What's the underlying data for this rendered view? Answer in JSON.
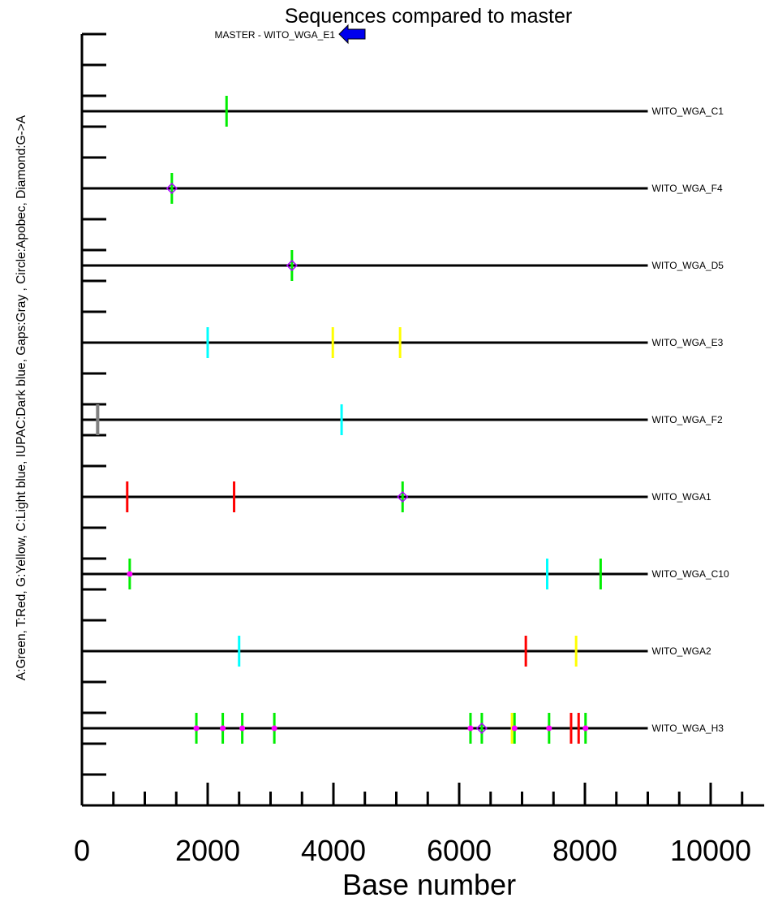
{
  "chart_data": {
    "type": "scatter",
    "title": "Sequences compared to master",
    "xlabel": "Base number",
    "ylabel": "A:Green, T:Red, G:Yellow, C:Light blue, IUPAC:Dark blue, Gaps:Gray , Circle:Apobec, Diamond:G->A",
    "xlim": [
      0,
      11000
    ],
    "x_ticks": [
      0,
      2000,
      4000,
      6000,
      8000,
      10000
    ],
    "x_tick_labels": [
      "0",
      "2000",
      "4000",
      "6000",
      "8000",
      "10000"
    ],
    "sequence_length": 9000,
    "master": {
      "label": "MASTER - WITO_WGA_E1"
    },
    "colors": {
      "A": "#00ee00",
      "T": "#ff0000",
      "G": "#ffff00",
      "C": "#00ffff",
      "IUPAC": "#0000ff",
      "gap": "#808080",
      "apobec": "#ff00ff",
      "g_to_a": "#aa00ff",
      "line": "#000000"
    },
    "sequences": [
      {
        "name": "WITO_WGA_C1",
        "mutations": [
          {
            "pos": 2300,
            "base": "A"
          }
        ]
      },
      {
        "name": "WITO_WGA_F4",
        "mutations": [
          {
            "pos": 1430,
            "base": "A",
            "mark": "diamond"
          }
        ]
      },
      {
        "name": "WITO_WGA_D5",
        "mutations": [
          {
            "pos": 3340,
            "base": "A",
            "mark": "diamond"
          }
        ]
      },
      {
        "name": "WITO_WGA_E3",
        "mutations": [
          {
            "pos": 2000,
            "base": "C"
          },
          {
            "pos": 3990,
            "base": "G"
          },
          {
            "pos": 5060,
            "base": "G"
          }
        ]
      },
      {
        "name": "WITO_WGA_F2",
        "mutations": [
          {
            "pos": 250,
            "base": "gap"
          },
          {
            "pos": 4130,
            "base": "C"
          }
        ]
      },
      {
        "name": "WITO_WGA1",
        "mutations": [
          {
            "pos": 720,
            "base": "T"
          },
          {
            "pos": 2420,
            "base": "T"
          },
          {
            "pos": 5100,
            "base": "A",
            "mark": "diamond"
          }
        ]
      },
      {
        "name": "WITO_WGA_C10",
        "mutations": [
          {
            "pos": 760,
            "base": "A",
            "mark": "circle"
          },
          {
            "pos": 7400,
            "base": "C"
          },
          {
            "pos": 8250,
            "base": "A"
          }
        ]
      },
      {
        "name": "WITO_WGA2",
        "mutations": [
          {
            "pos": 2500,
            "base": "C"
          },
          {
            "pos": 7060,
            "base": "T"
          },
          {
            "pos": 7860,
            "base": "G"
          }
        ]
      },
      {
        "name": "WITO_WGA_H3",
        "mutations": [
          {
            "pos": 1820,
            "base": "A",
            "mark": "circle"
          },
          {
            "pos": 2240,
            "base": "A",
            "mark": "circle"
          },
          {
            "pos": 2550,
            "base": "A",
            "mark": "circle"
          },
          {
            "pos": 3060,
            "base": "A",
            "mark": "circle"
          },
          {
            "pos": 6180,
            "base": "A",
            "mark": "circle"
          },
          {
            "pos": 6360,
            "base": "A",
            "mark": "diamond"
          },
          {
            "pos": 6840,
            "base": "G"
          },
          {
            "pos": 6880,
            "base": "A",
            "mark": "circle"
          },
          {
            "pos": 7430,
            "base": "A",
            "mark": "circle"
          },
          {
            "pos": 7780,
            "base": "T"
          },
          {
            "pos": 7900,
            "base": "T"
          },
          {
            "pos": 8010,
            "base": "A",
            "mark": "circle"
          }
        ]
      }
    ]
  }
}
